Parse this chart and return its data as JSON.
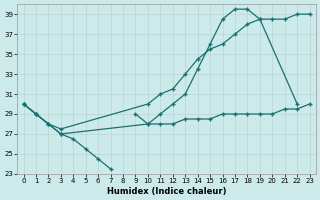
{
  "xlabel": "Humidex (Indice chaleur)",
  "bg_color": "#cdeaea",
  "grid_color": "#b8d4d4",
  "line_color": "#1a7070",
  "xlim": [
    -0.5,
    23.5
  ],
  "ylim": [
    23,
    40
  ],
  "yticks": [
    23,
    25,
    27,
    29,
    31,
    33,
    35,
    37,
    39
  ],
  "xticks": [
    0,
    1,
    2,
    3,
    4,
    5,
    6,
    7,
    8,
    9,
    10,
    11,
    12,
    13,
    14,
    15,
    16,
    17,
    18,
    19,
    20,
    21,
    22,
    23
  ],
  "curve1_x": [
    0,
    1,
    2,
    3,
    10,
    11,
    12,
    13,
    14,
    15,
    16,
    17,
    18,
    19,
    22
  ],
  "curve1_y": [
    30,
    29,
    28,
    27,
    28,
    29,
    30,
    31,
    33.5,
    36,
    38.5,
    39.5,
    39.5,
    38.5,
    30
  ],
  "curve2_x": [
    0,
    1,
    2,
    3,
    10,
    11,
    12,
    13,
    14,
    15,
    16,
    17,
    18,
    19,
    20,
    21,
    22,
    23
  ],
  "curve2_y": [
    30,
    29,
    28,
    27.5,
    30,
    31,
    31.5,
    33,
    34.5,
    35.5,
    36,
    37,
    38,
    38.5,
    38.5,
    38.5,
    39,
    39
  ],
  "curve3_x": [
    0,
    1,
    2,
    3,
    4,
    5,
    6,
    7,
    9,
    10,
    11,
    12,
    13,
    14,
    15,
    16,
    17,
    18,
    19,
    20,
    21,
    22,
    23
  ],
  "curve3_y": [
    30,
    29,
    28,
    27,
    26.5,
    25.5,
    24.5,
    23.5,
    29,
    28,
    28,
    28,
    28.5,
    28.5,
    28.5,
    29,
    29,
    29,
    29,
    29,
    29.5,
    29.5,
    30
  ]
}
